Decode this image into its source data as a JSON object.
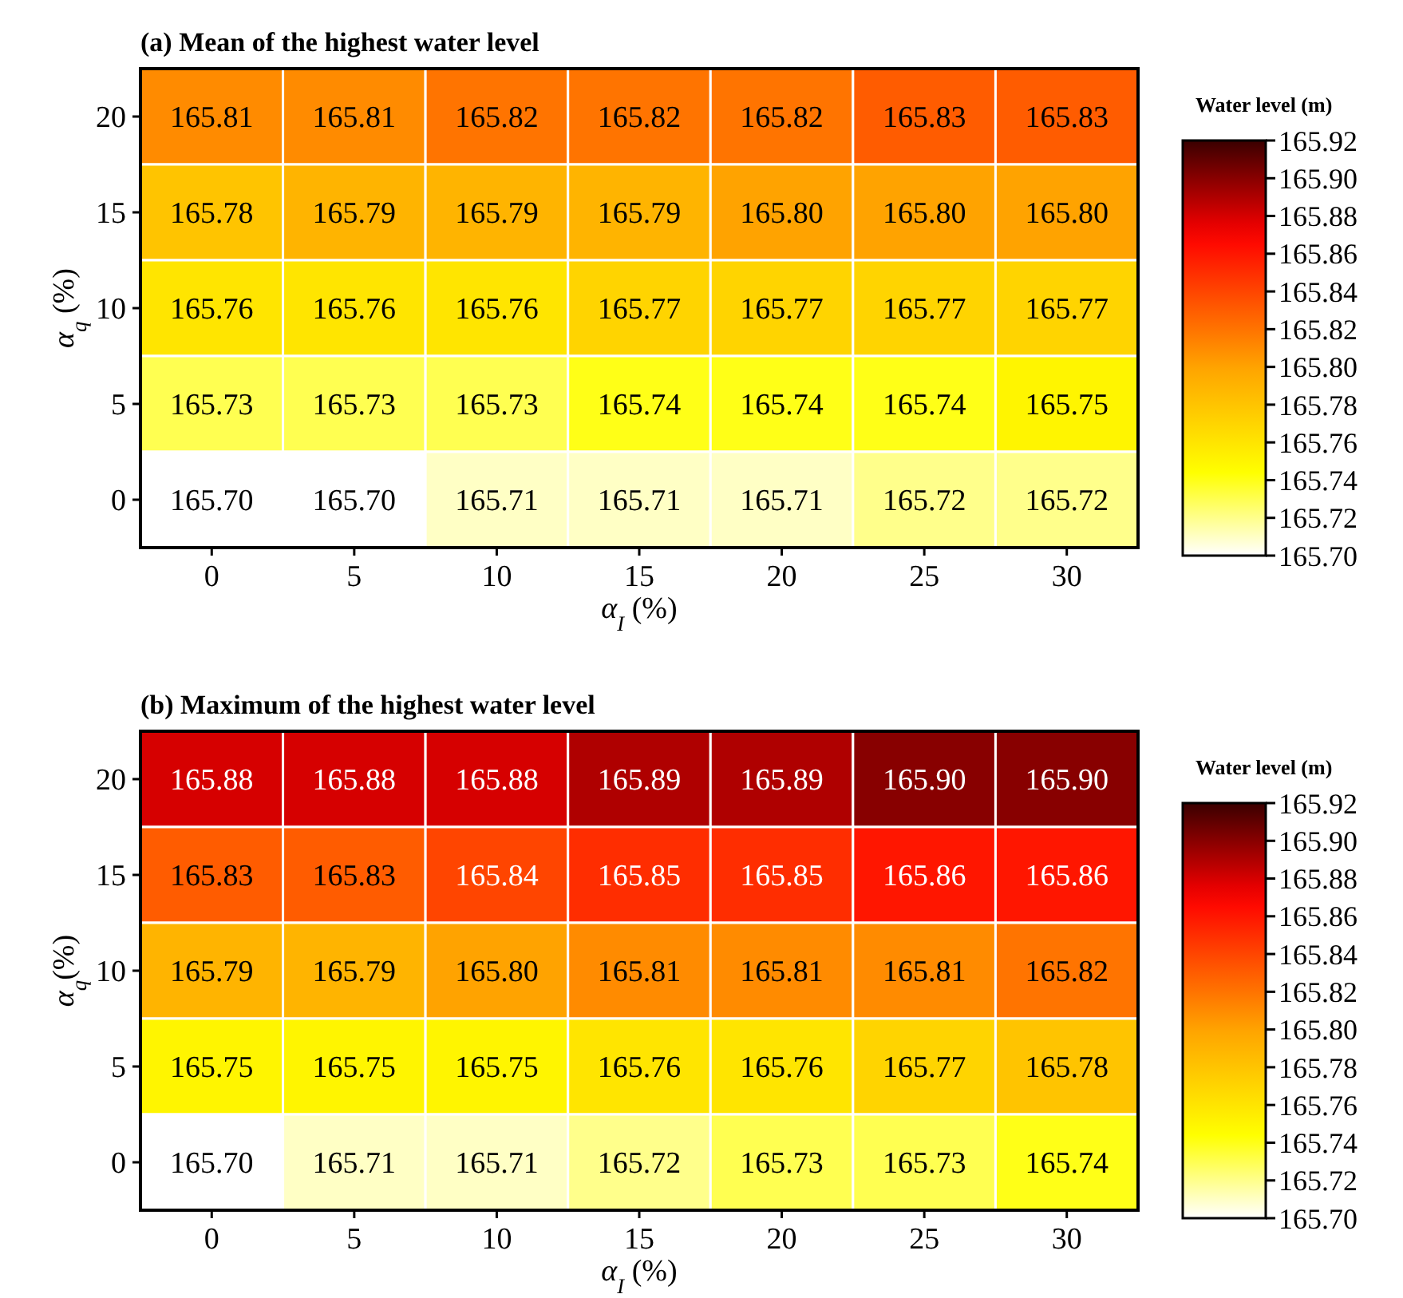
{
  "chart_data": [
    {
      "type": "heatmap",
      "title": "(a) Mean of the highest water level",
      "xlabel": "α$_{I}$ (%)",
      "ylabel": "α$_{q}$ (%)",
      "clabel": "Water level (m)",
      "categories": [
        "0",
        "5",
        "10",
        "15",
        "20",
        "25",
        "30"
      ],
      "y_categories": [
        "20",
        "15",
        "10",
        "5",
        "0"
      ],
      "cells": [
        [
          165.81,
          165.81,
          165.82,
          165.82,
          165.82,
          165.83,
          165.83
        ],
        [
          165.78,
          165.79,
          165.79,
          165.79,
          165.8,
          165.8,
          165.8
        ],
        [
          165.76,
          165.76,
          165.76,
          165.77,
          165.77,
          165.77,
          165.77
        ],
        [
          165.73,
          165.73,
          165.73,
          165.74,
          165.74,
          165.74,
          165.75
        ],
        [
          165.7,
          165.7,
          165.71,
          165.71,
          165.71,
          165.72,
          165.72
        ]
      ],
      "cell_labels": [
        [
          "165.81",
          "165.81",
          "165.82",
          "165.82",
          "165.82",
          "165.83",
          "165.83"
        ],
        [
          "165.78",
          "165.79",
          "165.79",
          "165.79",
          "165.80",
          "165.80",
          "165.80"
        ],
        [
          "165.76",
          "165.76",
          "165.76",
          "165.77",
          "165.77",
          "165.77",
          "165.77"
        ],
        [
          "165.73",
          "165.73",
          "165.73",
          "165.74",
          "165.74",
          "165.74",
          "165.75"
        ],
        [
          "165.70",
          "165.70",
          "165.71",
          "165.71",
          "165.71",
          "165.72",
          "165.72"
        ]
      ],
      "clim": [
        165.7,
        165.92
      ],
      "cticks": [
        {
          "value": 165.7,
          "label": "165.70"
        },
        165.72,
        165.74,
        165.76,
        165.78,
        {
          "value": 165.8,
          "label": "165.80"
        },
        165.82,
        165.84,
        165.86,
        165.88,
        {
          "value": 165.9,
          "label": "165.90"
        },
        165.92
      ]
    },
    {
      "type": "heatmap",
      "title": "(b) Maximum of the highest water level",
      "xlabel": "α$_{I}$ (%)",
      "ylabel": "α$_{q}$(%)",
      "clabel": "Water level (m)",
      "categories": [
        "0",
        "5",
        "10",
        "15",
        "20",
        "25",
        "30"
      ],
      "y_categories": [
        "20",
        "15",
        "10",
        "5",
        "0"
      ],
      "cells": [
        [
          165.88,
          165.88,
          165.88,
          165.89,
          165.89,
          165.9,
          165.9
        ],
        [
          165.83,
          165.83,
          165.84,
          165.85,
          165.85,
          165.86,
          165.86
        ],
        [
          165.79,
          165.79,
          165.8,
          165.81,
          165.81,
          165.81,
          165.82
        ],
        [
          165.75,
          165.75,
          165.75,
          165.76,
          165.76,
          165.77,
          165.78
        ],
        [
          165.7,
          165.71,
          165.71,
          165.72,
          165.73,
          165.73,
          165.74
        ]
      ],
      "cell_labels": [
        [
          "165.88",
          "165.88",
          "165.88",
          "165.89",
          "165.89",
          "165.90",
          "165.90"
        ],
        [
          "165.83",
          "165.83",
          "165.84",
          "165.85",
          "165.85",
          "165.86",
          "165.86"
        ],
        [
          "165.79",
          "165.79",
          "165.80",
          "165.81",
          "165.81",
          "165.81",
          "165.82"
        ],
        [
          "165.75",
          "165.75",
          "165.75",
          "165.76",
          "165.76",
          "165.77",
          "165.78"
        ],
        [
          "165.70",
          "165.71",
          "165.71",
          "165.72",
          "165.73",
          "165.73",
          "165.74"
        ]
      ],
      "clim": [
        165.7,
        165.92
      ],
      "cticks": [
        {
          "value": 165.7,
          "label": "165.70"
        },
        165.72,
        165.74,
        165.76,
        165.78,
        {
          "value": 165.8,
          "label": "165.80"
        },
        165.82,
        165.84,
        165.86,
        165.88,
        {
          "value": 165.9,
          "label": "165.90"
        },
        165.92
      ]
    }
  ]
}
